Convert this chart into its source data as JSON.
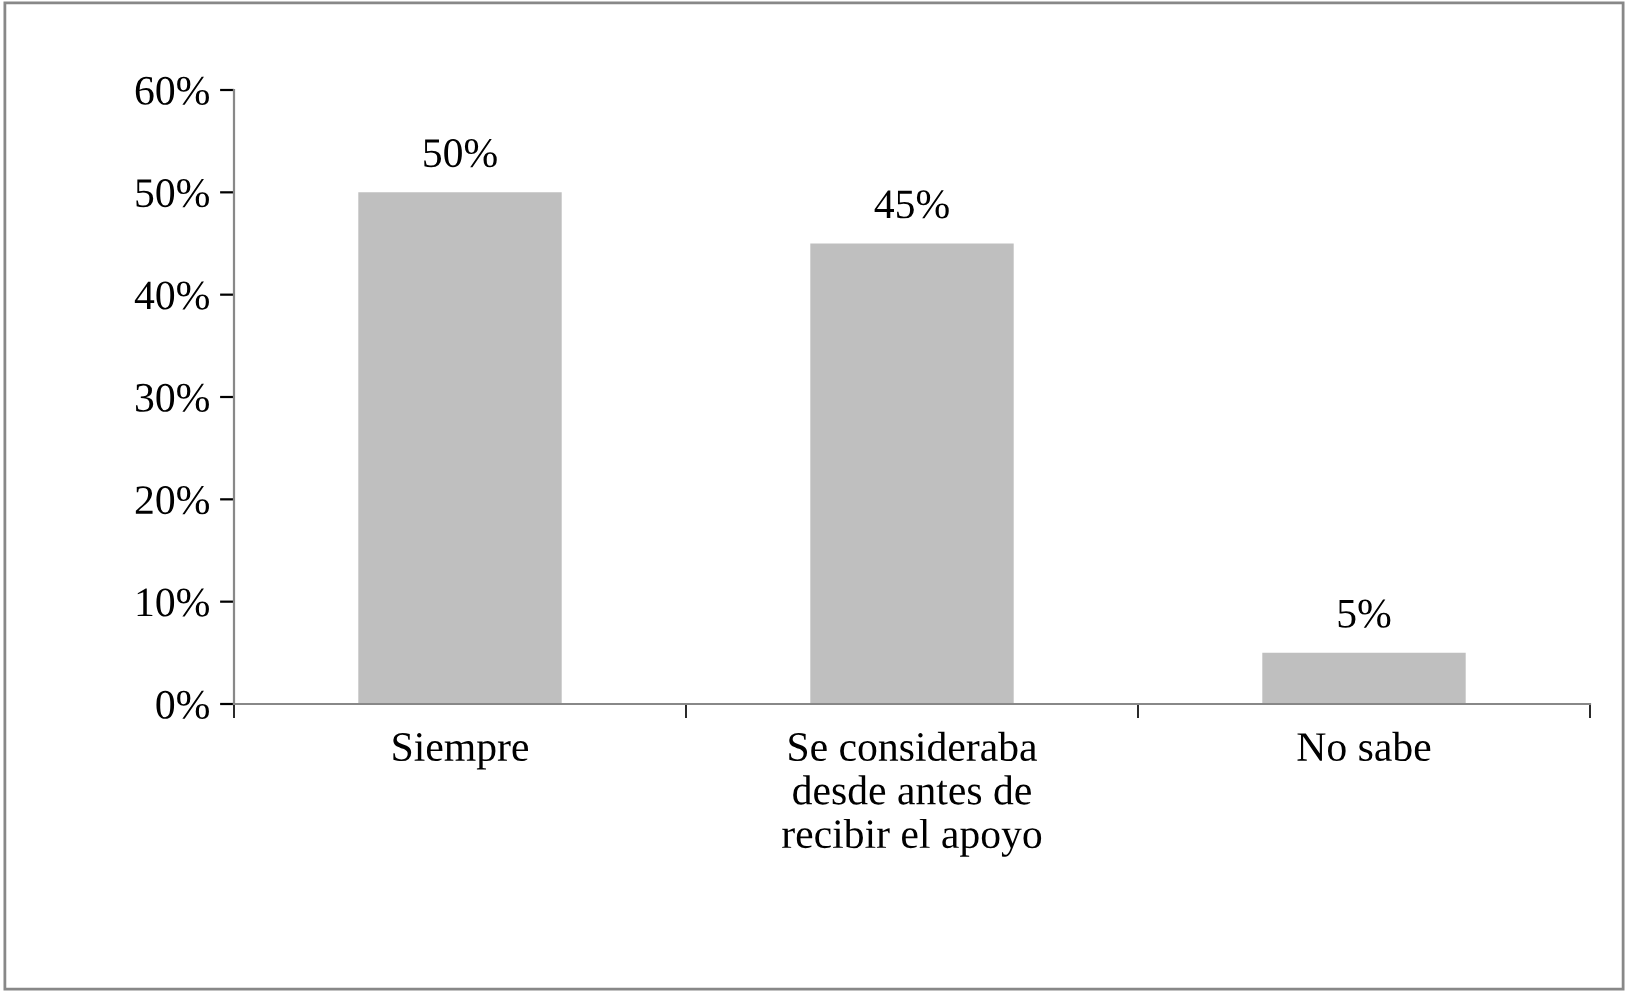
{
  "chart_data": {
    "type": "bar",
    "categories": [
      "Siempre",
      "Se consideraba\ndesde antes de\nrecibir el apoyo",
      "No sabe"
    ],
    "values": [
      50,
      45,
      5
    ],
    "color": "#bfbfbf",
    "value_labels": [
      "50%",
      "45%",
      "5%"
    ],
    "ylim": [
      0,
      60
    ],
    "yticks": [
      {
        "value": 0,
        "label": "0%"
      },
      {
        "value": 10,
        "label": "10%"
      },
      {
        "value": 20,
        "label": "20%"
      },
      {
        "value": 30,
        "label": "30%"
      },
      {
        "value": 40,
        "label": "40%"
      },
      {
        "value": 50,
        "label": "50%"
      },
      {
        "value": 60,
        "label": "60%"
      }
    ],
    "grid": false,
    "legend": false
  }
}
